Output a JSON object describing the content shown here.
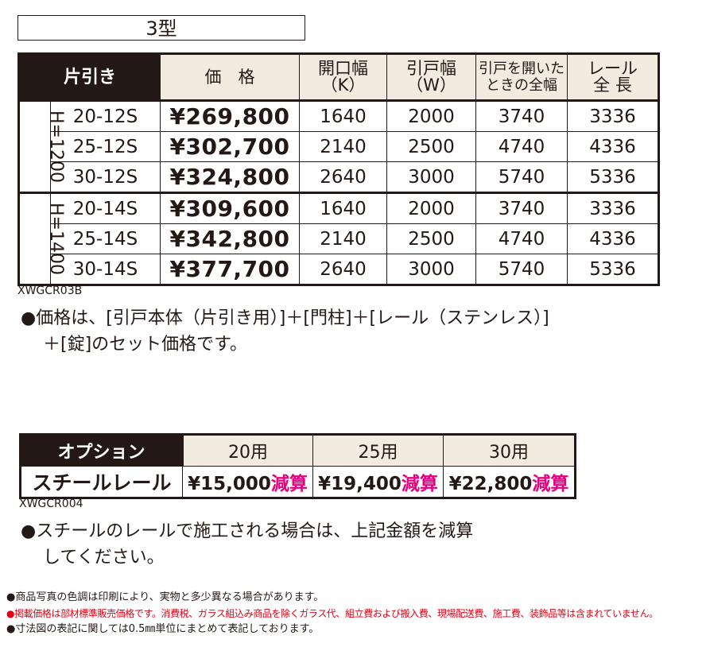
{
  "title": "3型",
  "main_table": {
    "headers": {
      "type": "片引き",
      "price": "価　格",
      "opening": [
        "開口幅",
        "（K）"
      ],
      "door": [
        "引戸幅",
        "（W）"
      ],
      "full": [
        "引戸を開いた",
        "ときの全幅"
      ],
      "rail": [
        "レール",
        "全 長"
      ]
    },
    "groups": [
      {
        "label": "H=1200",
        "rows": [
          {
            "model": "20-12S",
            "price": "¥269,800",
            "k": "1640",
            "w": "2000",
            "full": "3740",
            "rail": "3336"
          },
          {
            "model": "25-12S",
            "price": "¥302,700",
            "k": "2140",
            "w": "2500",
            "full": "4740",
            "rail": "4336"
          },
          {
            "model": "30-12S",
            "price": "¥324,800",
            "k": "2640",
            "w": "3000",
            "full": "5740",
            "rail": "5336"
          }
        ]
      },
      {
        "label": "H=1400",
        "rows": [
          {
            "model": "20-14S",
            "price": "¥309,600",
            "k": "1640",
            "w": "2000",
            "full": "3740",
            "rail": "3336"
          },
          {
            "model": "25-14S",
            "price": "¥342,800",
            "k": "2140",
            "w": "2500",
            "full": "4740",
            "rail": "4336"
          },
          {
            "model": "30-14S",
            "price": "¥377,700",
            "k": "2640",
            "w": "3000",
            "full": "5740",
            "rail": "5336"
          }
        ]
      }
    ],
    "code": "XWGCR03B"
  },
  "note1": [
    "●価格は、[引戸本体（片引き用）]＋[門柱]＋[レール（ステンレス）]",
    "＋[錠]のセット価格です。"
  ],
  "option_table": {
    "header": "オプション",
    "columns": [
      "20用",
      "25用",
      "30用"
    ],
    "row_name": "スチールレール",
    "values": [
      "¥15,000",
      "¥19,400",
      "¥22,800"
    ],
    "suffix": "減算",
    "code": "XWGCR004"
  },
  "note2": [
    "●スチールのレールで施工される場合は、上記金額を減算",
    "してください。"
  ],
  "footnotes": [
    "●商品写真の色調は印刷により、実物と多少異なる場合があります。",
    "●掲載価格は部材標準販売価格です。消費税、ガラス組込み商品を除くガラス代、組立費および搬入費、現場配送費、施工費、装飾品等は含まれていません。",
    "●寸法図の表記に関しては0.5㎜単位にまとめて表記しております。"
  ]
}
